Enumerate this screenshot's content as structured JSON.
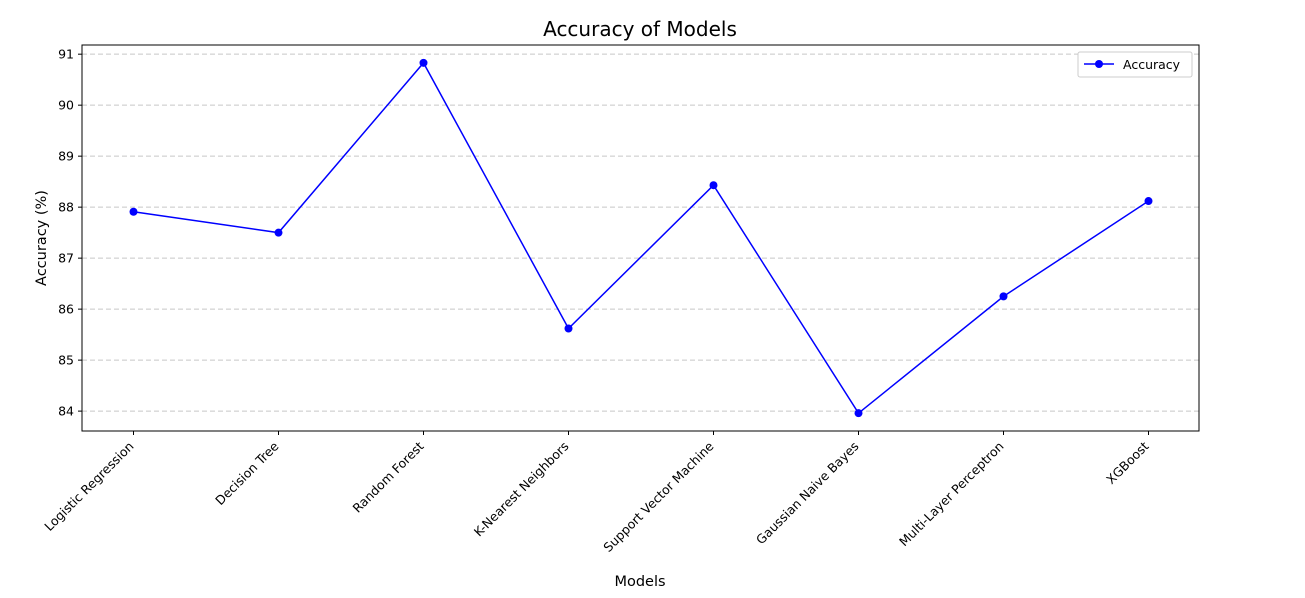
{
  "chart_data": {
    "type": "line",
    "title": "Accuracy of Models",
    "xlabel": "Models",
    "ylabel": "Accuracy (%)",
    "categories": [
      "Logistic Regression",
      "Decision Tree",
      "Random Forest",
      "K-Nearest Neighbors",
      "Support Vector Machine",
      "Gaussian Naive Bayes",
      "Multi-Layer Perceptron",
      "XGBoost"
    ],
    "series": [
      {
        "name": "Accuracy",
        "values": [
          87.91,
          87.5,
          90.83,
          85.62,
          88.43,
          83.96,
          86.25,
          88.12
        ],
        "color": "#0000ff",
        "marker": "circle"
      }
    ],
    "yticks": [
      84,
      85,
      86,
      87,
      88,
      89,
      90,
      91
    ],
    "ylim": [
      83.61,
      91.18
    ],
    "grid": "y-dashed",
    "legend": "top-right"
  }
}
